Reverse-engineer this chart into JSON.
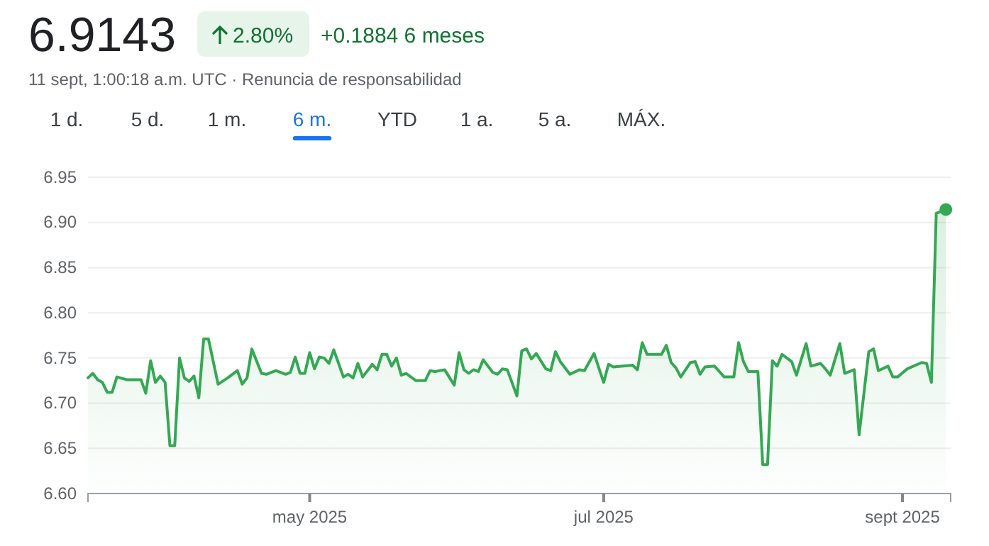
{
  "chart_data": {
    "type": "area",
    "title": "6.9143",
    "subtitle": "11 sept, 1:00:18 a.m. UTC · Renuncia de responsabilidad",
    "annotations": [
      "2.80%",
      "+0.1884 6 meses",
      "1 d.",
      "5 d.",
      "1 m.",
      "6 m.",
      "YTD",
      "1 a.",
      "5 a.",
      "MÁX."
    ],
    "x": [
      "2025-03-16",
      "2025-03-17",
      "2025-03-18",
      "2025-03-19",
      "2025-03-20",
      "2025-03-21",
      "2025-03-22",
      "2025-03-24",
      "2025-03-27",
      "2025-03-28",
      "2025-03-29",
      "2025-03-30",
      "2025-03-31",
      "2025-04-01",
      "2025-04-02",
      "2025-04-03",
      "2025-04-04",
      "2025-04-05",
      "2025-04-06",
      "2025-04-07",
      "2025-04-08",
      "2025-04-09",
      "2025-04-10",
      "2025-04-12",
      "2025-04-14",
      "2025-04-16",
      "2025-04-17",
      "2025-04-18",
      "2025-04-19",
      "2025-04-21",
      "2025-04-22",
      "2025-04-24",
      "2025-04-26",
      "2025-04-27",
      "2025-04-28",
      "2025-04-29",
      "2025-04-30",
      "2025-05-01",
      "2025-05-02",
      "2025-05-03",
      "2025-05-04",
      "2025-05-05",
      "2025-05-06",
      "2025-05-08",
      "2025-05-09",
      "2025-05-10",
      "2025-05-11",
      "2025-05-12",
      "2025-05-14",
      "2025-05-15",
      "2025-05-16",
      "2025-05-17",
      "2025-05-18",
      "2025-05-19",
      "2025-05-20",
      "2025-05-21",
      "2025-05-23",
      "2025-05-25",
      "2025-05-26",
      "2025-05-27",
      "2025-05-29",
      "2025-05-31",
      "2025-06-01",
      "2025-06-02",
      "2025-06-03",
      "2025-06-04",
      "2025-06-05",
      "2025-06-06",
      "2025-06-08",
      "2025-06-09",
      "2025-06-10",
      "2025-06-11",
      "2025-06-13",
      "2025-06-14",
      "2025-06-15",
      "2025-06-16",
      "2025-06-17",
      "2025-06-19",
      "2025-06-20",
      "2025-06-21",
      "2025-06-22",
      "2025-06-24",
      "2025-06-26",
      "2025-06-27",
      "2025-06-29",
      "2025-07-01",
      "2025-07-02",
      "2025-07-03",
      "2025-07-07",
      "2025-07-08",
      "2025-07-09",
      "2025-07-10",
      "2025-07-13",
      "2025-07-14",
      "2025-07-15",
      "2025-07-16",
      "2025-07-17",
      "2025-07-19",
      "2025-07-20",
      "2025-07-21",
      "2025-07-22",
      "2025-07-24",
      "2025-07-26",
      "2025-07-28",
      "2025-07-29",
      "2025-07-30",
      "2025-07-31",
      "2025-08-02",
      "2025-08-03",
      "2025-08-04",
      "2025-08-05",
      "2025-08-06",
      "2025-08-07",
      "2025-08-09",
      "2025-08-10",
      "2025-08-12",
      "2025-08-13",
      "2025-08-15",
      "2025-08-16",
      "2025-08-17",
      "2025-08-19",
      "2025-08-20",
      "2025-08-22",
      "2025-08-23",
      "2025-08-25",
      "2025-08-26",
      "2025-08-27",
      "2025-08-29",
      "2025-08-30",
      "2025-08-31",
      "2025-09-02",
      "2025-09-05",
      "2025-09-06",
      "2025-09-07",
      "2025-09-08",
      "2025-09-10"
    ],
    "series": [
      {
        "color": "#34a853",
        "values": [
          6.728,
          6.733,
          6.726,
          6.723,
          6.712,
          6.712,
          6.729,
          6.726,
          6.726,
          6.711,
          6.747,
          6.723,
          6.73,
          6.723,
          6.653,
          6.653,
          6.75,
          6.728,
          6.724,
          6.73,
          6.706,
          6.771,
          6.771,
          6.721,
          6.728,
          6.736,
          6.721,
          6.728,
          6.76,
          6.733,
          6.732,
          6.736,
          6.732,
          6.734,
          6.751,
          6.733,
          6.733,
          6.756,
          6.738,
          6.751,
          6.75,
          6.744,
          6.759,
          6.729,
          6.732,
          6.728,
          6.744,
          6.729,
          6.743,
          6.737,
          6.754,
          6.754,
          6.741,
          6.75,
          6.731,
          6.733,
          6.725,
          6.725,
          6.736,
          6.735,
          6.737,
          6.72,
          6.756,
          6.737,
          6.733,
          6.737,
          6.735,
          6.748,
          6.734,
          6.732,
          6.738,
          6.737,
          6.708,
          6.758,
          6.76,
          6.749,
          6.755,
          6.738,
          6.736,
          6.757,
          6.746,
          6.732,
          6.737,
          6.736,
          6.755,
          6.723,
          6.743,
          6.74,
          6.742,
          6.737,
          6.767,
          6.754,
          6.754,
          6.764,
          6.745,
          6.739,
          6.729,
          6.745,
          6.746,
          6.732,
          6.74,
          6.741,
          6.729,
          6.729,
          6.767,
          6.746,
          6.735,
          6.735,
          6.632,
          6.632,
          6.747,
          6.741,
          6.754,
          6.746,
          6.731,
          6.766,
          6.741,
          6.744,
          6.738,
          6.731,
          6.766,
          6.733,
          6.737,
          6.665,
          6.757,
          6.76,
          6.736,
          6.741,
          6.729,
          6.729,
          6.738,
          6.745,
          6.744,
          6.723,
          6.91,
          6.9143
        ]
      }
    ],
    "xlim": [
      "2025-03-16",
      "2025-09-11"
    ],
    "xticks": [
      {
        "value": "2025-05-01",
        "label": "may 2025"
      },
      {
        "value": "2025-07-01",
        "label": "jul 2025"
      },
      {
        "value": "2025-09-01",
        "label": "sept 2025"
      }
    ],
    "ylim": [
      6.6,
      6.95
    ],
    "yticks": [
      {
        "value": 6.6,
        "label": "6.60"
      },
      6.65,
      {
        "value": 6.7,
        "label": "6.70"
      },
      6.75,
      {
        "value": 6.8,
        "label": "6.80"
      },
      6.85,
      {
        "value": 6.9,
        "label": "6.90"
      },
      6.95
    ],
    "grid": "y"
  }
}
